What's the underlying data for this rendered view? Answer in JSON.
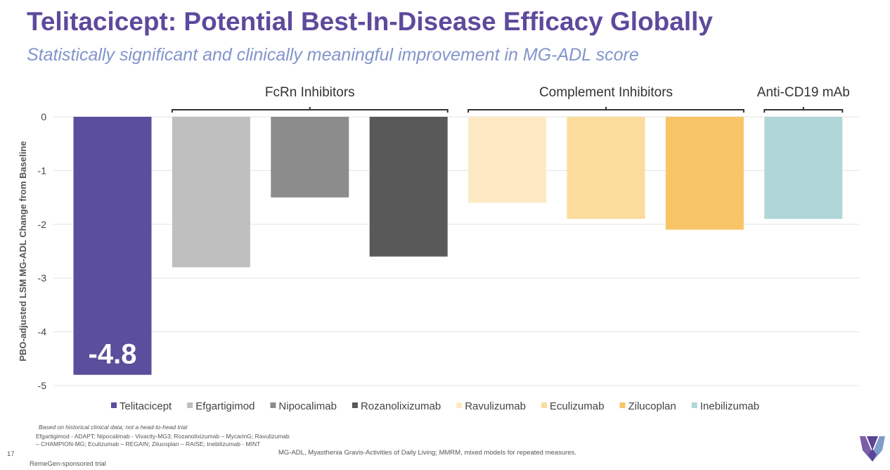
{
  "header": {
    "title": "Telitacicept: Potential Best-In-Disease Efficacy Globally",
    "subtitle": "Statistically significant and clinically meaningful improvement in MG-ADL score"
  },
  "chart_data": {
    "type": "bar",
    "ylabel": "PBO-adjusted LSM MG-ADL Change from Baseline",
    "ylim": [
      -5,
      0
    ],
    "yticks": [
      0,
      -1,
      -2,
      -3,
      -4,
      -5
    ],
    "grid": true,
    "legend": "bottom",
    "categories": [
      "Telitacicept",
      "Efgartigimod",
      "Nipocalimab",
      "Rozanolixizumab",
      "Ravulizumab",
      "Eculizumab",
      "Zilucoplan",
      "Inebilizumab"
    ],
    "values": [
      -4.8,
      -2.8,
      -1.5,
      -2.6,
      -1.6,
      -1.9,
      -2.1,
      -1.9
    ],
    "colors": [
      "#5B4E9C",
      "#BFBFBF",
      "#8C8C8C",
      "#595959",
      "#FDE9C4",
      "#FBDC9C",
      "#F8C566",
      "#B1D6D8"
    ],
    "data_labels": [
      {
        "category": "Telitacicept",
        "text": "-4.8"
      }
    ],
    "groups": [
      {
        "label": "FcRn Inhibitors",
        "from": 1,
        "to": 3
      },
      {
        "label": "Complement Inhibitors",
        "from": 4,
        "to": 6
      },
      {
        "label": "Anti-CD19 mAb",
        "from": 7,
        "to": 7
      }
    ]
  },
  "footnotes": {
    "disclaimer": "Based on historical clinical data; not a head-to-head trial",
    "trials_line1": "Efgartigimod - ADAPT; Nipocalimab - Vivacity-MG3; Rozanolixizumab – MycarinG; Ravulizumab",
    "trials_line2": "– CHAMPION-MG; Eculizumab – REGAIN; Zilucoplan – RAISE; Inebilizumab - MINT",
    "abbreviations": "MG-ADL, Myasthenia Gravis-Activities of Daily Living; MMRM, mixed models for repeated measures.",
    "sponsored": "RemeGen-sponsored trial",
    "page_number": "17"
  }
}
